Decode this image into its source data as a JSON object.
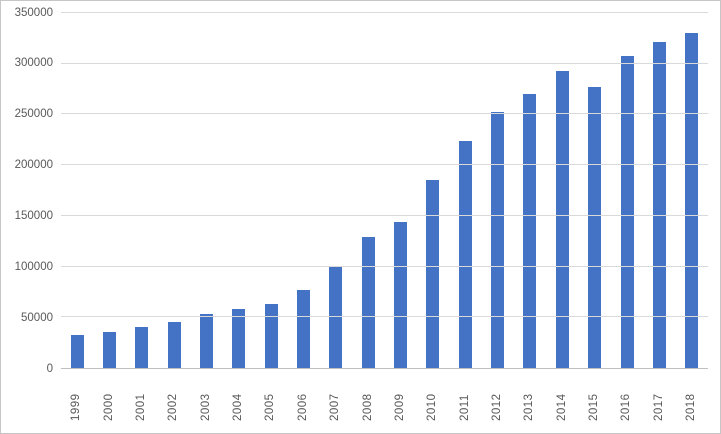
{
  "chart_data": {
    "type": "bar",
    "title": "",
    "categories": [
      "1999",
      "2000",
      "2001",
      "2002",
      "2003",
      "2004",
      "2005",
      "2006",
      "2007",
      "2008",
      "2009",
      "2010",
      "2011",
      "2012",
      "2013",
      "2014",
      "2015",
      "2016",
      "2017",
      "2018"
    ],
    "values": [
      33000,
      36000,
      40000,
      45000,
      53000,
      58000,
      63000,
      77000,
      101000,
      129000,
      144000,
      185000,
      224000,
      252000,
      270000,
      293000,
      277000,
      308000,
      321000,
      330000
    ],
    "xlabel": "",
    "ylabel": "",
    "ylim": [
      0,
      350000
    ],
    "yticks": [
      0,
      50000,
      100000,
      150000,
      200000,
      250000,
      300000,
      350000
    ],
    "ytick_labels": [
      "0",
      "50000",
      "100000",
      "150000",
      "200000",
      "250000",
      "300000",
      "350000"
    ],
    "grid": true,
    "legend": false,
    "colors": {
      "bar": "#4472C4",
      "gridline": "#d9d9d9",
      "axis_line": "#bfbfbf",
      "tick_label": "#595959",
      "background": "#ffffff",
      "border": "#c6c6c6"
    }
  }
}
